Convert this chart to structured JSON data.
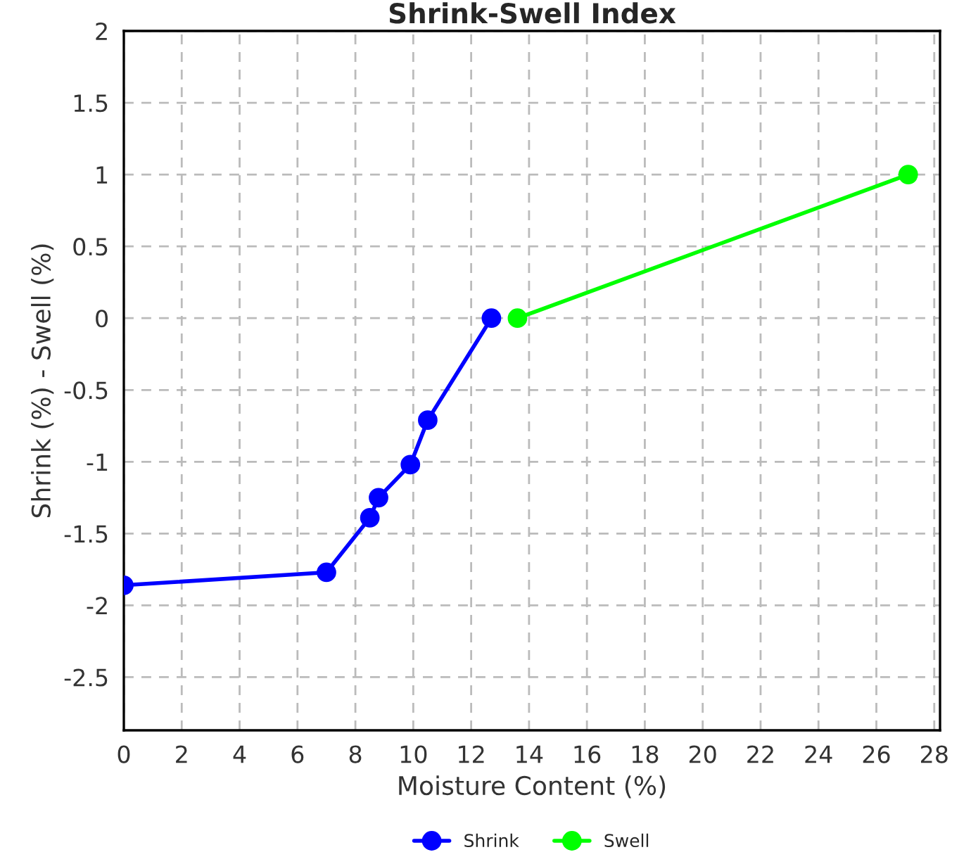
{
  "chart_data": {
    "type": "line",
    "title": "Shrink-Swell Index",
    "xlabel": "Moisture Content (%)",
    "ylabel": "Shrink (%) - Swell (%)",
    "xlim": [
      0,
      28.2
    ],
    "xticks": [
      0,
      2,
      4,
      6,
      8,
      10,
      12,
      14,
      16,
      18,
      20,
      22,
      24,
      26,
      28
    ],
    "ylim": [
      -2.87,
      2
    ],
    "yticks": [
      -2.5,
      -2,
      -1.5,
      -1,
      -0.5,
      0,
      0.5,
      1,
      1.5,
      2
    ],
    "grid": true,
    "legend": "bottom",
    "marker": "circle",
    "line_style": "solid",
    "series": [
      {
        "name": "Shrink",
        "color": "#0000ff",
        "x": [
          0,
          7.0,
          8.5,
          8.8,
          9.9,
          10.5,
          12.7
        ],
        "values": [
          -1.86,
          -1.77,
          -1.39,
          -1.25,
          -1.02,
          -0.71,
          0
        ]
      },
      {
        "name": "Swell",
        "color": "#00ff00",
        "x": [
          13.6,
          27.1
        ],
        "values": [
          0,
          1
        ]
      }
    ]
  }
}
